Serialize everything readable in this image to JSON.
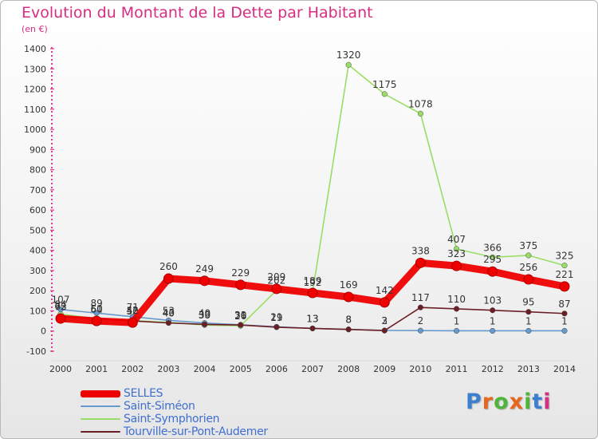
{
  "header": {
    "title": "Evolution du Montant de la Dette par Habitant",
    "subtitle": "(en €)"
  },
  "logo": {
    "letters": [
      "P",
      "r",
      "o",
      "x",
      "i",
      "t",
      "i"
    ],
    "colors": [
      "#3b7fd0",
      "#e8661c",
      "#4fb43a",
      "#e8661c",
      "#4fb43a",
      "#3b7fd0",
      "#d62e80"
    ]
  },
  "chart_data": {
    "type": "line",
    "title": "Evolution du Montant de la Dette par Habitant",
    "ylabel": "(en €)",
    "xlabel": "",
    "x": [
      "2000",
      "2001",
      "2002",
      "2003",
      "2004",
      "2005",
      "2006",
      "2007",
      "2008",
      "2009",
      "2010",
      "2011",
      "2012",
      "2013",
      "2014"
    ],
    "ylim": [
      -100,
      1400
    ],
    "yticks": [
      -100,
      0,
      100,
      200,
      300,
      400,
      500,
      600,
      700,
      800,
      900,
      1000,
      1100,
      1200,
      1300,
      1400
    ],
    "grid": false,
    "legend": "bottom-left",
    "series": [
      {
        "name": "Saint-Symphorien",
        "color": "#99dd66",
        "values": [
          84,
          61,
          52,
          43,
          30,
          26,
          202,
          192,
          1320,
          1175,
          1078,
          407,
          366,
          375,
          325
        ],
        "labels": [
          "84",
          "61",
          "52",
          "43",
          "30",
          "26",
          "202",
          "192",
          "1320",
          "1175",
          "1078",
          "407",
          "366",
          "375",
          "325"
        ]
      },
      {
        "name": "Saint-Siméon",
        "color": "#6699cc",
        "values": [
          107,
          89,
          71,
          53,
          40,
          31,
          21,
          13,
          8,
          3,
          2,
          1,
          1,
          1,
          1
        ],
        "labels": [
          "107",
          "89",
          "71",
          "53",
          "40",
          "31",
          "21",
          "13",
          "8",
          "3",
          "2",
          "1",
          "1",
          "1",
          "1"
        ]
      },
      {
        "name": "Tourville-sur-Pont-Audemer",
        "color": "#6b1f25",
        "values": [
          73,
          60,
          50,
          40,
          33,
          30,
          19,
          13,
          8,
          2,
          117,
          110,
          103,
          95,
          87
        ],
        "labels": [
          "73",
          "60",
          "50",
          "40",
          "33",
          "30",
          "19",
          "13",
          "8",
          "2",
          "117",
          "110",
          "103",
          "95",
          "87"
        ]
      },
      {
        "name": "SELLES",
        "color": "#ee0000",
        "values": [
          62,
          50,
          42,
          260,
          249,
          229,
          209,
          189,
          169,
          142,
          338,
          323,
          295,
          256,
          221
        ],
        "labels": [
          "62",
          "50",
          "42",
          "260",
          "249",
          "229",
          "209",
          "189",
          "169",
          "142",
          "338",
          "323",
          "295",
          "256",
          "221"
        ]
      }
    ]
  }
}
